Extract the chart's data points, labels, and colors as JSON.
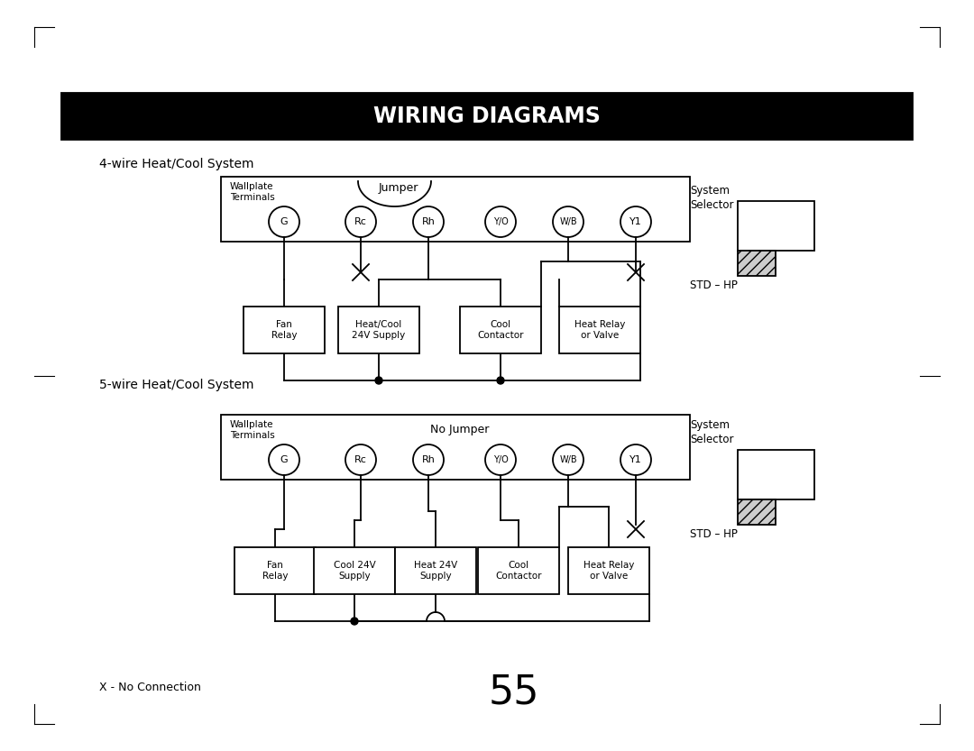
{
  "title": "WIRING DIAGRAMS",
  "title_bg": "#000000",
  "title_color": "#ffffff",
  "page_number": "55",
  "footnote": "X - No Connection",
  "diagram1_title": "4-wire Heat/Cool System",
  "diagram1_jumper_label": "Jumper",
  "diagram2_title": "5-wire Heat/Cool System",
  "diagram2_jumper_label": "No Jumper",
  "terminals": [
    "G",
    "Rc",
    "Rh",
    "Y/O",
    "W/B",
    "Y1"
  ],
  "diagram1_boxes": [
    "Fan\nRelay",
    "Heat/Cool\n24V Supply",
    "Cool\nContactor",
    "Heat Relay\nor Valve"
  ],
  "diagram2_boxes": [
    "Fan\nRelay",
    "Cool 24V\nSupply",
    "Heat 24V\nSupply",
    "Cool\nContactor",
    "Heat Relay\nor Valve"
  ],
  "system_selector_label": "System\nSelector",
  "std_hp_label": "STD – HP",
  "bg_color": "#ffffff",
  "line_color": "#000000"
}
